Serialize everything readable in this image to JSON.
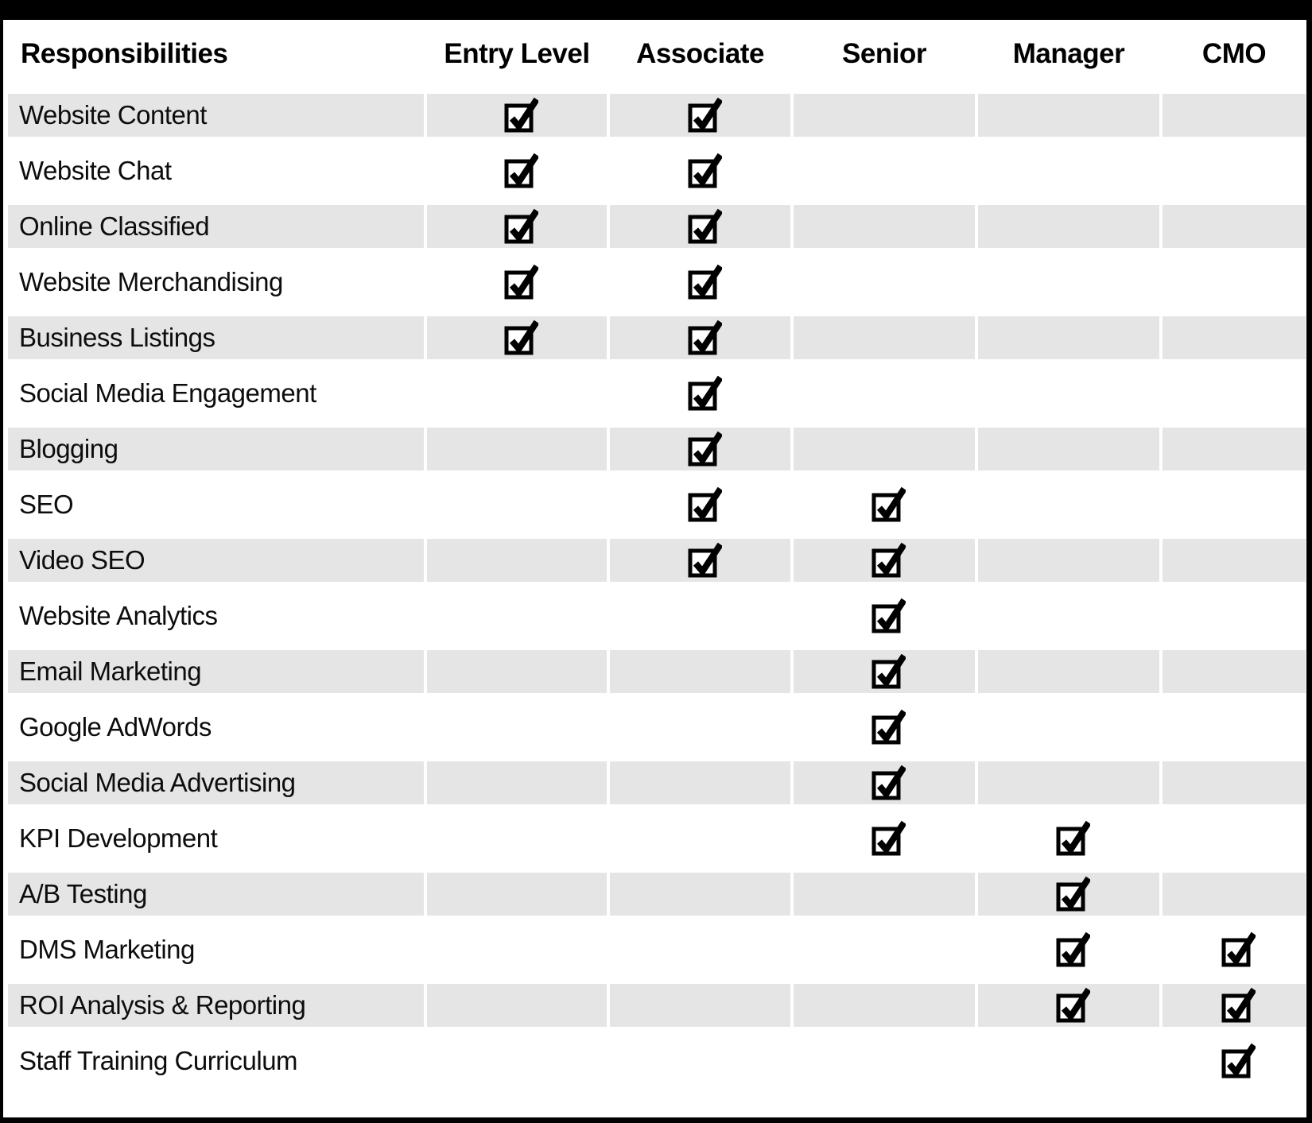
{
  "chart_data": {
    "type": "table",
    "title": "Responsibilities",
    "columns": [
      "Responsibilities",
      "Entry Level",
      "Associate",
      "Senior",
      "Manager",
      "CMO"
    ],
    "rows": [
      {
        "label": "Website Content",
        "checks": [
          true,
          true,
          false,
          false,
          false
        ]
      },
      {
        "label": "Website Chat",
        "checks": [
          true,
          true,
          false,
          false,
          false
        ]
      },
      {
        "label": "Online Classified",
        "checks": [
          true,
          true,
          false,
          false,
          false
        ]
      },
      {
        "label": "Website Merchandising",
        "checks": [
          true,
          true,
          false,
          false,
          false
        ]
      },
      {
        "label": "Business Listings",
        "checks": [
          true,
          true,
          false,
          false,
          false
        ]
      },
      {
        "label": "Social Media Engagement",
        "checks": [
          false,
          true,
          false,
          false,
          false
        ]
      },
      {
        "label": "Blogging",
        "checks": [
          false,
          true,
          false,
          false,
          false
        ]
      },
      {
        "label": "SEO",
        "checks": [
          false,
          true,
          true,
          false,
          false
        ]
      },
      {
        "label": "Video SEO",
        "checks": [
          false,
          true,
          true,
          false,
          false
        ]
      },
      {
        "label": "Website Analytics",
        "checks": [
          false,
          false,
          true,
          false,
          false
        ]
      },
      {
        "label": "Email Marketing",
        "checks": [
          false,
          false,
          true,
          false,
          false
        ]
      },
      {
        "label": "Google AdWords",
        "checks": [
          false,
          false,
          true,
          false,
          false
        ]
      },
      {
        "label": "Social Media Advertising",
        "checks": [
          false,
          false,
          true,
          false,
          false
        ]
      },
      {
        "label": "KPI Development",
        "checks": [
          false,
          false,
          true,
          true,
          false
        ]
      },
      {
        "label": "A/B Testing",
        "checks": [
          false,
          false,
          false,
          true,
          false
        ]
      },
      {
        "label": "DMS Marketing",
        "checks": [
          false,
          false,
          false,
          true,
          true
        ]
      },
      {
        "label": "ROI Analysis & Reporting",
        "checks": [
          false,
          false,
          false,
          true,
          true
        ]
      },
      {
        "label": "Staff Training Curriculum",
        "checks": [
          false,
          false,
          false,
          false,
          true
        ]
      }
    ]
  },
  "icons": {
    "checked": "checkbox-checked-icon"
  },
  "colors": {
    "frame_border": "#000000",
    "row_alternate": "#e5e5e5",
    "checkbox": "#000000",
    "text": "#0d0d0d",
    "background": "#ffffff"
  }
}
